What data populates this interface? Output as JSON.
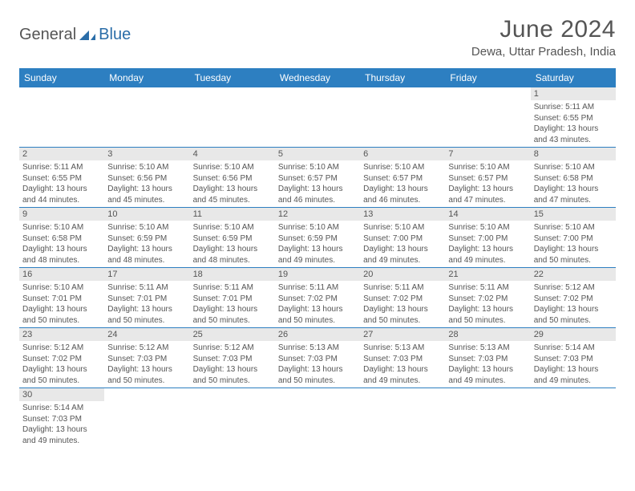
{
  "logo": {
    "text1": "General",
    "text2": "Blue"
  },
  "title": "June 2024",
  "location": "Dewa, Uttar Pradesh, India",
  "colors": {
    "header_bg": "#2d7fc1",
    "header_text": "#ffffff",
    "daynum_bg": "#e8e8e8",
    "text": "#555555",
    "row_border": "#2d7fc1",
    "logo_blue": "#2a6da8"
  },
  "dayHeaders": [
    "Sunday",
    "Monday",
    "Tuesday",
    "Wednesday",
    "Thursday",
    "Friday",
    "Saturday"
  ],
  "startOffset": 6,
  "days": [
    {
      "n": 1,
      "sr": "5:11 AM",
      "ss": "6:55 PM",
      "dl": "13 hours and 43 minutes."
    },
    {
      "n": 2,
      "sr": "5:11 AM",
      "ss": "6:55 PM",
      "dl": "13 hours and 44 minutes."
    },
    {
      "n": 3,
      "sr": "5:10 AM",
      "ss": "6:56 PM",
      "dl": "13 hours and 45 minutes."
    },
    {
      "n": 4,
      "sr": "5:10 AM",
      "ss": "6:56 PM",
      "dl": "13 hours and 45 minutes."
    },
    {
      "n": 5,
      "sr": "5:10 AM",
      "ss": "6:57 PM",
      "dl": "13 hours and 46 minutes."
    },
    {
      "n": 6,
      "sr": "5:10 AM",
      "ss": "6:57 PM",
      "dl": "13 hours and 46 minutes."
    },
    {
      "n": 7,
      "sr": "5:10 AM",
      "ss": "6:57 PM",
      "dl": "13 hours and 47 minutes."
    },
    {
      "n": 8,
      "sr": "5:10 AM",
      "ss": "6:58 PM",
      "dl": "13 hours and 47 minutes."
    },
    {
      "n": 9,
      "sr": "5:10 AM",
      "ss": "6:58 PM",
      "dl": "13 hours and 48 minutes."
    },
    {
      "n": 10,
      "sr": "5:10 AM",
      "ss": "6:59 PM",
      "dl": "13 hours and 48 minutes."
    },
    {
      "n": 11,
      "sr": "5:10 AM",
      "ss": "6:59 PM",
      "dl": "13 hours and 48 minutes."
    },
    {
      "n": 12,
      "sr": "5:10 AM",
      "ss": "6:59 PM",
      "dl": "13 hours and 49 minutes."
    },
    {
      "n": 13,
      "sr": "5:10 AM",
      "ss": "7:00 PM",
      "dl": "13 hours and 49 minutes."
    },
    {
      "n": 14,
      "sr": "5:10 AM",
      "ss": "7:00 PM",
      "dl": "13 hours and 49 minutes."
    },
    {
      "n": 15,
      "sr": "5:10 AM",
      "ss": "7:00 PM",
      "dl": "13 hours and 50 minutes."
    },
    {
      "n": 16,
      "sr": "5:10 AM",
      "ss": "7:01 PM",
      "dl": "13 hours and 50 minutes."
    },
    {
      "n": 17,
      "sr": "5:11 AM",
      "ss": "7:01 PM",
      "dl": "13 hours and 50 minutes."
    },
    {
      "n": 18,
      "sr": "5:11 AM",
      "ss": "7:01 PM",
      "dl": "13 hours and 50 minutes."
    },
    {
      "n": 19,
      "sr": "5:11 AM",
      "ss": "7:02 PM",
      "dl": "13 hours and 50 minutes."
    },
    {
      "n": 20,
      "sr": "5:11 AM",
      "ss": "7:02 PM",
      "dl": "13 hours and 50 minutes."
    },
    {
      "n": 21,
      "sr": "5:11 AM",
      "ss": "7:02 PM",
      "dl": "13 hours and 50 minutes."
    },
    {
      "n": 22,
      "sr": "5:12 AM",
      "ss": "7:02 PM",
      "dl": "13 hours and 50 minutes."
    },
    {
      "n": 23,
      "sr": "5:12 AM",
      "ss": "7:02 PM",
      "dl": "13 hours and 50 minutes."
    },
    {
      "n": 24,
      "sr": "5:12 AM",
      "ss": "7:03 PM",
      "dl": "13 hours and 50 minutes."
    },
    {
      "n": 25,
      "sr": "5:12 AM",
      "ss": "7:03 PM",
      "dl": "13 hours and 50 minutes."
    },
    {
      "n": 26,
      "sr": "5:13 AM",
      "ss": "7:03 PM",
      "dl": "13 hours and 50 minutes."
    },
    {
      "n": 27,
      "sr": "5:13 AM",
      "ss": "7:03 PM",
      "dl": "13 hours and 49 minutes."
    },
    {
      "n": 28,
      "sr": "5:13 AM",
      "ss": "7:03 PM",
      "dl": "13 hours and 49 minutes."
    },
    {
      "n": 29,
      "sr": "5:14 AM",
      "ss": "7:03 PM",
      "dl": "13 hours and 49 minutes."
    },
    {
      "n": 30,
      "sr": "5:14 AM",
      "ss": "7:03 PM",
      "dl": "13 hours and 49 minutes."
    }
  ],
  "labels": {
    "sunrise": "Sunrise:",
    "sunset": "Sunset:",
    "daylight": "Daylight:"
  }
}
